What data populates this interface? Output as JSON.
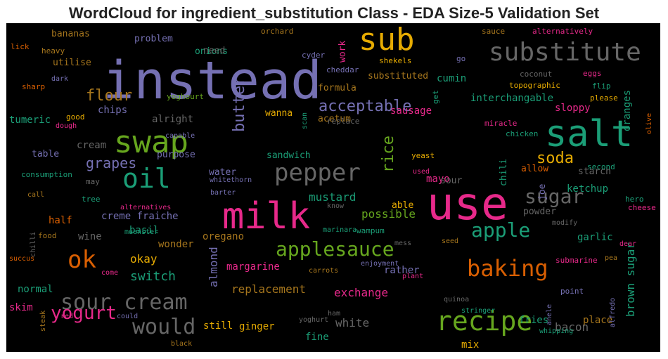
{
  "title": "WordCloud for ingredient_substitution Class - EDA Size-5 Validation Set",
  "colors": {
    "p": "#7570b3",
    "t": "#1b9e77",
    "o": "#d95f02",
    "m": "#e7298a",
    "g": "#66a61e",
    "y": "#e6ab02",
    "b": "#a6761d",
    "k": "#666666"
  },
  "words": [
    {
      "text": "instead",
      "c": "p"
    },
    {
      "text": "use",
      "c": "m"
    },
    {
      "text": "milk",
      "c": "m"
    },
    {
      "text": "salt",
      "c": "t"
    },
    {
      "text": "sub",
      "c": "y"
    },
    {
      "text": "substitute",
      "c": "k"
    },
    {
      "text": "swap",
      "c": "g"
    },
    {
      "text": "oil",
      "c": "t"
    },
    {
      "text": "pepper",
      "c": "k"
    },
    {
      "text": "recipe",
      "c": "g"
    },
    {
      "text": "baking",
      "c": "o"
    },
    {
      "text": "sugar",
      "c": "k"
    },
    {
      "text": "apple",
      "c": "t"
    },
    {
      "text": "applesauce",
      "c": "g"
    },
    {
      "text": "ok",
      "c": "o"
    },
    {
      "text": "sour cream",
      "c": "k"
    },
    {
      "text": "would",
      "c": "k"
    },
    {
      "text": "yogurt",
      "c": "m"
    },
    {
      "text": "butter",
      "c": "p"
    },
    {
      "text": "rice",
      "c": "g"
    },
    {
      "text": "soda",
      "c": "y"
    },
    {
      "text": "acceptable",
      "c": "p"
    },
    {
      "text": "flour",
      "c": "b"
    },
    {
      "text": "grapes",
      "c": "p"
    },
    {
      "text": "switch",
      "c": "t"
    },
    {
      "text": "okay",
      "c": "y"
    },
    {
      "text": "almond",
      "c": "p"
    },
    {
      "text": "mustard",
      "c": "t"
    },
    {
      "text": "brown sugar",
      "c": "t"
    },
    {
      "text": "replacement",
      "c": "b"
    },
    {
      "text": "exchange",
      "c": "m"
    },
    {
      "text": "possible",
      "c": "g"
    },
    {
      "text": "mayo",
      "c": "m"
    },
    {
      "text": "margarine",
      "c": "m"
    },
    {
      "text": "creme fraiche",
      "c": "p"
    },
    {
      "text": "white",
      "c": "k"
    },
    {
      "text": "bacon",
      "c": "k"
    },
    {
      "text": "ketchup",
      "c": "t"
    },
    {
      "text": "sausage",
      "c": "m"
    },
    {
      "text": "cream",
      "c": "k"
    },
    {
      "text": "chips",
      "c": "p"
    },
    {
      "text": "alright",
      "c": "k"
    },
    {
      "text": "tumeric",
      "c": "t"
    },
    {
      "text": "cumin",
      "c": "t"
    },
    {
      "text": "interchangable",
      "c": "t"
    },
    {
      "text": "sloppy",
      "c": "m"
    },
    {
      "text": "oranges",
      "c": "t"
    },
    {
      "text": "fries",
      "c": "t"
    },
    {
      "text": "place",
      "c": "b"
    },
    {
      "text": "ginger",
      "c": "y"
    },
    {
      "text": "rather",
      "c": "p"
    },
    {
      "text": "fine",
      "c": "t"
    },
    {
      "text": "mix",
      "c": "y"
    },
    {
      "text": "still",
      "c": "y"
    },
    {
      "text": "skim",
      "c": "m"
    },
    {
      "text": "normal",
      "c": "t"
    },
    {
      "text": "wonder",
      "c": "b"
    },
    {
      "text": "oregano",
      "c": "b"
    },
    {
      "text": "basil",
      "c": "t"
    },
    {
      "text": "garlic",
      "c": "t"
    },
    {
      "text": "half",
      "c": "o"
    },
    {
      "text": "wine",
      "c": "k"
    },
    {
      "text": "formula",
      "c": "b"
    },
    {
      "text": "substituted",
      "c": "b"
    },
    {
      "text": "work",
      "c": "m"
    },
    {
      "text": "onions",
      "c": "t"
    },
    {
      "text": "bananas",
      "c": "b"
    },
    {
      "text": "problem",
      "c": "p"
    },
    {
      "text": "need",
      "c": "k"
    },
    {
      "text": "utilise",
      "c": "b"
    },
    {
      "text": "acetum",
      "c": "b"
    },
    {
      "text": "wanna",
      "c": "y"
    },
    {
      "text": "sandwich",
      "c": "t"
    },
    {
      "text": "water",
      "c": "p"
    },
    {
      "text": "purpose",
      "c": "p"
    },
    {
      "text": "table",
      "c": "p"
    },
    {
      "text": "able",
      "c": "y"
    },
    {
      "text": "sour",
      "c": "k"
    },
    {
      "text": "powder",
      "c": "k"
    },
    {
      "text": "joe",
      "c": "p"
    },
    {
      "text": "allow",
      "c": "o"
    },
    {
      "text": "starch",
      "c": "k"
    },
    {
      "text": "chili",
      "c": "t"
    },
    {
      "text": "cyder",
      "c": "p"
    },
    {
      "text": "shekels",
      "c": "y"
    },
    {
      "text": "cheddar",
      "c": "p"
    },
    {
      "text": "coconut",
      "c": "k"
    },
    {
      "text": "topographic",
      "c": "y"
    },
    {
      "text": "eggs",
      "c": "m"
    },
    {
      "text": "flip",
      "c": "t"
    },
    {
      "text": "please",
      "c": "y"
    },
    {
      "text": "sauce",
      "c": "b"
    },
    {
      "text": "alternatively",
      "c": "m"
    },
    {
      "text": "orchard",
      "c": "b"
    },
    {
      "text": "go",
      "c": "p"
    },
    {
      "text": "get",
      "c": "t"
    },
    {
      "text": "yoghourt",
      "c": "g"
    },
    {
      "text": "replace",
      "c": "k"
    },
    {
      "text": "miracle",
      "c": "m"
    },
    {
      "text": "chicken",
      "c": "t"
    },
    {
      "text": "olive",
      "c": "o"
    },
    {
      "text": "scan",
      "c": "t"
    },
    {
      "text": "yeast",
      "c": "y"
    },
    {
      "text": "used",
      "c": "m"
    },
    {
      "text": "second",
      "c": "t"
    },
    {
      "text": "hero",
      "c": "t"
    },
    {
      "text": "cheese",
      "c": "m"
    },
    {
      "text": "good",
      "c": "y"
    },
    {
      "text": "dough",
      "c": "m"
    },
    {
      "text": "capable",
      "c": "p"
    },
    {
      "text": "consumption",
      "c": "t"
    },
    {
      "text": "may",
      "c": "k"
    },
    {
      "text": "call",
      "c": "b"
    },
    {
      "text": "tree",
      "c": "t"
    },
    {
      "text": "barter",
      "c": "p"
    },
    {
      "text": "whitethorn",
      "c": "p"
    },
    {
      "text": "alternatives",
      "c": "m"
    },
    {
      "text": "know",
      "c": "k"
    },
    {
      "text": "wampum",
      "c": "t"
    },
    {
      "text": "modify",
      "c": "k"
    },
    {
      "text": "muenster",
      "c": "t"
    },
    {
      "text": "marinara",
      "c": "t"
    },
    {
      "text": "mess",
      "c": "k"
    },
    {
      "text": "seed",
      "c": "b"
    },
    {
      "text": "pea",
      "c": "b"
    },
    {
      "text": "dear",
      "c": "m"
    },
    {
      "text": "submarine",
      "c": "m"
    },
    {
      "text": "enjoyment",
      "c": "p"
    },
    {
      "text": "carrots",
      "c": "b"
    },
    {
      "text": "plant",
      "c": "m"
    },
    {
      "text": "point",
      "c": "p"
    },
    {
      "text": "quinoa",
      "c": "k"
    },
    {
      "text": "stringer",
      "c": "t"
    },
    {
      "text": "anele",
      "c": "p"
    },
    {
      "text": "alfredo",
      "c": "p"
    },
    {
      "text": "whipping",
      "c": "t"
    },
    {
      "text": "yoghurt",
      "c": "k"
    },
    {
      "text": "ham",
      "c": "k"
    },
    {
      "text": "black",
      "c": "b"
    },
    {
      "text": "could",
      "c": "p"
    },
    {
      "text": "red",
      "c": "m"
    },
    {
      "text": "steak",
      "c": "b"
    },
    {
      "text": "chilli",
      "c": "k"
    },
    {
      "text": "food",
      "c": "b"
    },
    {
      "text": "succus",
      "c": "o"
    },
    {
      "text": "come",
      "c": "m"
    },
    {
      "text": "lick",
      "c": "o"
    },
    {
      "text": "heavy",
      "c": "b"
    },
    {
      "text": "dark",
      "c": "p"
    },
    {
      "text": "sharp",
      "c": "o"
    }
  ]
}
